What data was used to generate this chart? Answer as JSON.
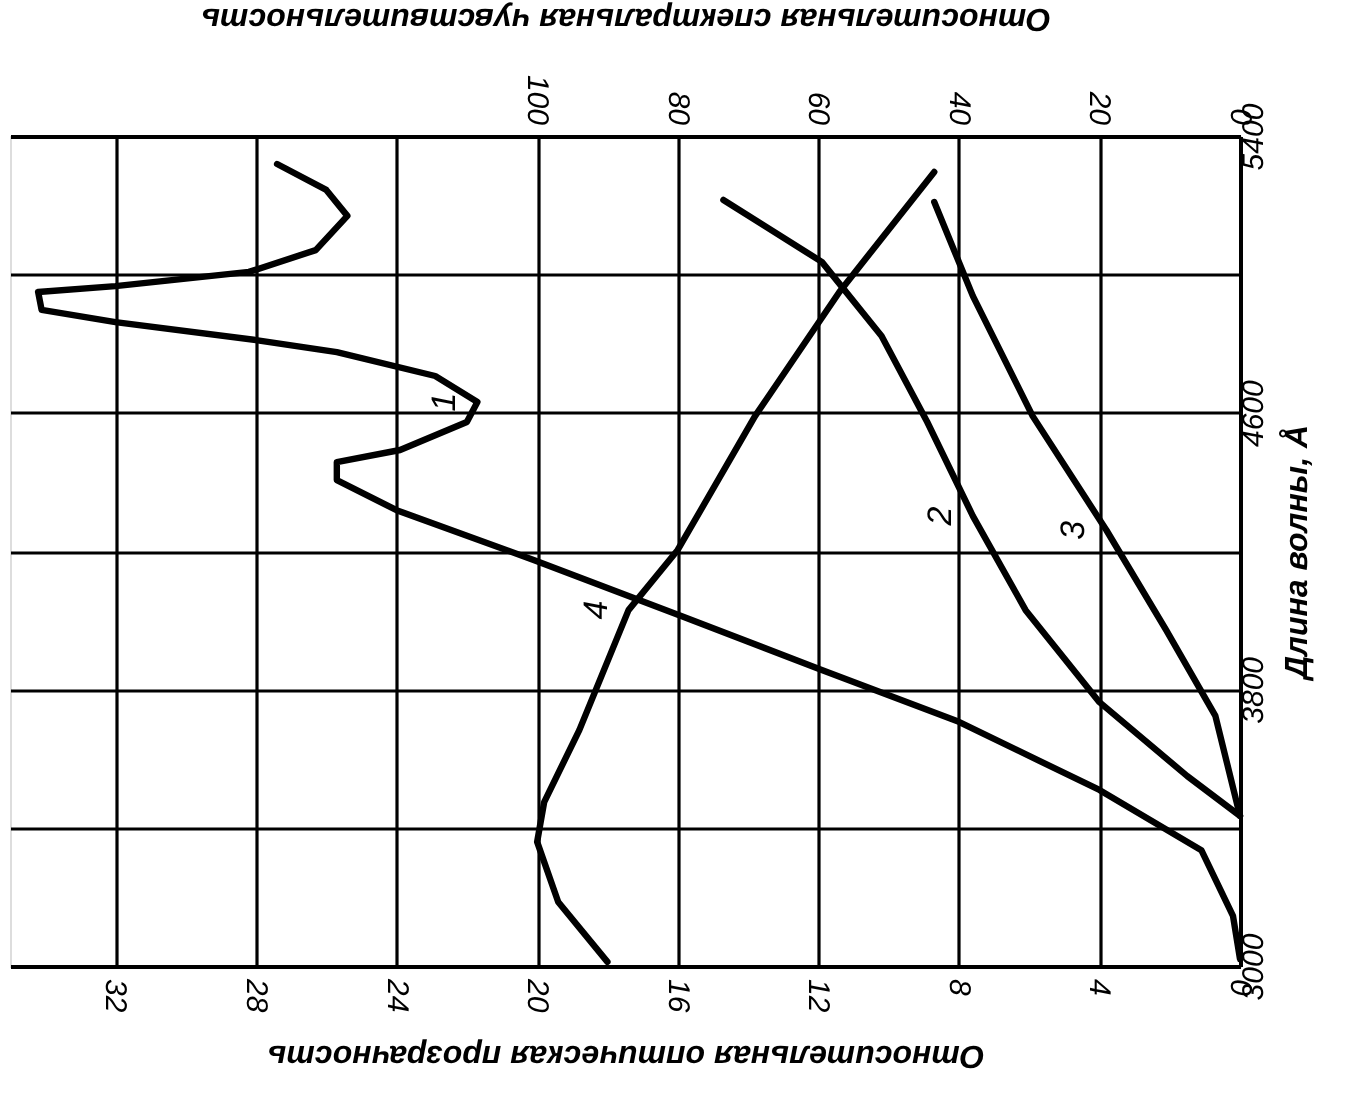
{
  "chart_data": {
    "type": "line",
    "orientation": "horizontal",
    "xlabel": "Относительная оптическая прозрачность",
    "x2label": "Относительная спектральная чувствительность",
    "ylabel": "Длина волны, Å",
    "xlim": [
      35,
      0
    ],
    "xticks": [
      32,
      28,
      24,
      20,
      16,
      12,
      8,
      4,
      0
    ],
    "x2lim": [
      175,
      0
    ],
    "x2ticks": [
      100,
      80,
      60,
      40,
      20,
      0
    ],
    "ylim": [
      3000,
      5400
    ],
    "yticks": [
      3000,
      {
        "value": 3400,
        "label": null
      },
      3800,
      {
        "value": 4200,
        "label": null
      },
      4600,
      {
        "value": 5000,
        "label": null
      },
      5400
    ],
    "grid": true,
    "marker": "none",
    "line_style": "solid",
    "series": [
      {
        "name": "1",
        "color": "#000000",
        "x": [
          3020,
          3145,
          3335,
          3509,
          3706,
          3856,
          4012,
          4174,
          4318,
          4405,
          4457,
          4492,
          4573,
          4631,
          4706,
          4775,
          4810,
          4862,
          4897,
          4949,
          4966,
          5007,
          5070,
          5169,
          5244,
          5319
        ],
        "values": [
          0,
          0.2,
          1.1,
          4.0,
          8.0,
          11.9,
          15.9,
          20.1,
          24.0,
          25.7,
          25.7,
          23.9,
          22.0,
          21.7,
          22.9,
          25.7,
          28.0,
          32.0,
          34.1,
          34.2,
          32.0,
          28.2,
          26.3,
          25.4,
          26.0,
          27.4
        ]
      },
      {
        "name": "2",
        "color": "#000000",
        "x": [
          3434,
          3549,
          3763,
          4029,
          4301,
          4573,
          4822,
          5036,
          5215
        ],
        "values": [
          0,
          1.5,
          4.0,
          6.1,
          7.6,
          8.9,
          10.2,
          11.9,
          14.7
        ]
      },
      {
        "name": "3",
        "color": "#000000",
        "x": [
          3434,
          3723,
          3971,
          4260,
          4590,
          4937,
          5209
        ],
        "values": [
          0,
          0.7,
          2.1,
          3.8,
          5.9,
          7.6,
          8.7
        ]
      },
      {
        "name": "4",
        "color": "#000000",
        "axis": "x2",
        "x": [
          3012,
          3185,
          3359,
          3474,
          3682,
          4029,
          4203,
          4590,
          4949,
          5296
        ],
        "values": [
          90,
          97,
          100,
          99,
          94,
          87,
          80,
          69,
          57,
          43.5
        ]
      }
    ]
  }
}
